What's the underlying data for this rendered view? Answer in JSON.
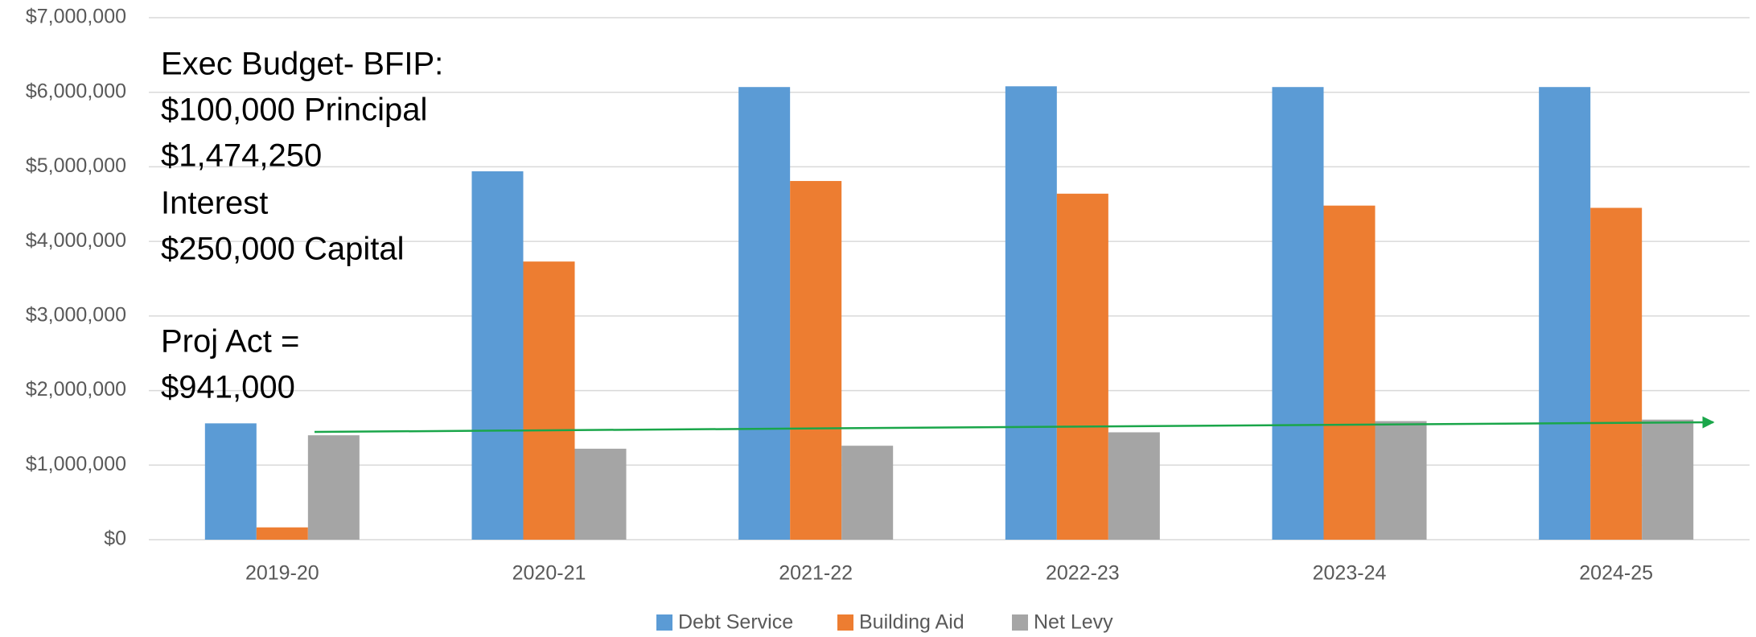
{
  "chart_data": {
    "type": "bar",
    "categories": [
      "2019-20",
      "2020-21",
      "2021-22",
      "2022-23",
      "2023-24",
      "2024-25"
    ],
    "series": [
      {
        "name": "Debt Service",
        "color": "#5b9bd5",
        "values": [
          1560000,
          4940000,
          6070000,
          6080000,
          6070000,
          6070000
        ]
      },
      {
        "name": "Building Aid",
        "color": "#ed7d31",
        "values": [
          165000,
          3730000,
          4810000,
          4640000,
          4480000,
          4450000
        ]
      },
      {
        "name": "Net Levy",
        "color": "#a5a5a5",
        "values": [
          1400000,
          1220000,
          1260000,
          1440000,
          1590000,
          1610000
        ]
      }
    ],
    "ylim": [
      0,
      7000000
    ],
    "yticks": [
      {
        "value": 0,
        "label": "$0"
      },
      {
        "value": 1000000,
        "label": "$1,000,000"
      },
      {
        "value": 2000000,
        "label": "$2,000,000"
      },
      {
        "value": 3000000,
        "label": "$3,000,000"
      },
      {
        "value": 4000000,
        "label": "$4,000,000"
      },
      {
        "value": 5000000,
        "label": "$5,000,000"
      },
      {
        "value": 6000000,
        "label": "$6,000,000"
      },
      {
        "value": 7000000,
        "label": "$7,000,000"
      }
    ],
    "grid": true,
    "legend": "bottom",
    "annotations": [
      "Exec Budget- BFIP:",
      "$100,000 Principal",
      "$1,474,250",
      "Interest",
      "$250,000 Capital",
      "Proj Act =",
      "$941,000"
    ]
  }
}
